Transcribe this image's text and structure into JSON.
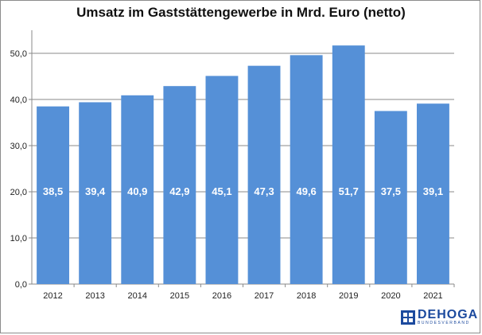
{
  "chart_data": {
    "type": "bar",
    "title": "Umsatz im Gaststättengewerbe in Mrd. Euro (netto)",
    "xlabel": "",
    "ylabel": "",
    "categories": [
      "2012",
      "2013",
      "2014",
      "2015",
      "2016",
      "2017",
      "2018",
      "2019",
      "2020",
      "2021"
    ],
    "values": [
      38.5,
      39.4,
      40.9,
      42.9,
      45.1,
      47.3,
      49.6,
      51.7,
      37.5,
      39.1
    ],
    "data_labels": [
      "38,5",
      "39,4",
      "40,9",
      "42,9",
      "45,1",
      "47,3",
      "49,6",
      "51,7",
      "37,5",
      "39,1"
    ],
    "ylim": [
      0,
      55
    ],
    "yticks": [
      0,
      10,
      20,
      30,
      40,
      50
    ],
    "ytick_labels": [
      "0,0",
      "10,0",
      "20,0",
      "30,0",
      "40,0",
      "50,0"
    ],
    "grid": true,
    "legend": "none",
    "bar_color": "#5590d7",
    "label_color": "#ffffff"
  },
  "logo": {
    "name": "DEHOGA",
    "subtitle": "BUNDESVERBAND",
    "color": "#1c4a9e"
  }
}
